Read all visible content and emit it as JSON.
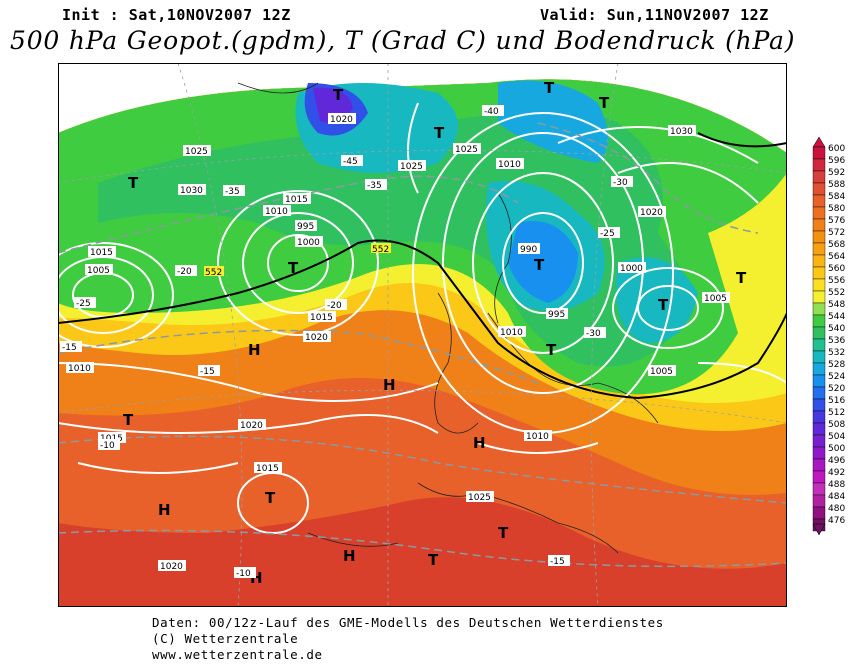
{
  "header": {
    "init": "Init : Sat,10NOV2007 12Z",
    "valid": "Valid: Sun,11NOV2007 12Z",
    "title": "500 hPa Geopot.(gpdm), T (Grad C) und Bodendruck (hPa)"
  },
  "footer": {
    "line1": "Daten: 00/12z-Lauf des GME-Modells des Deutschen Wetterdienstes",
    "line2": "(C) Wetterzentrale",
    "line3": "www.wetterzentrale.de"
  },
  "colorbar": {
    "levels": [
      "600",
      "596",
      "592",
      "588",
      "584",
      "580",
      "576",
      "572",
      "568",
      "564",
      "560",
      "556",
      "552",
      "548",
      "544",
      "540",
      "536",
      "532",
      "528",
      "524",
      "520",
      "516",
      "512",
      "508",
      "504",
      "500",
      "496",
      "492",
      "488",
      "484",
      "480",
      "476"
    ],
    "colors": [
      "#c8143c",
      "#d0283c",
      "#d8403c",
      "#e05032",
      "#e8602a",
      "#ec7020",
      "#f08018",
      "#f49010",
      "#f8a010",
      "#fcb414",
      "#fcc818",
      "#fce020",
      "#f4f030",
      "#90e050",
      "#40cc40",
      "#30c060",
      "#20c090",
      "#18b8c0",
      "#18a8e0",
      "#1890f0",
      "#2070f0",
      "#3050e8",
      "#4838e0",
      "#6028d8",
      "#7820d0",
      "#9018c8",
      "#a818c0",
      "#c018c0",
      "#c030b8",
      "#b020a0",
      "#901080",
      "#701060"
    ]
  },
  "map": {
    "highs_lows": [
      {
        "label": "T"
      },
      {
        "label": "T"
      },
      {
        "label": "T"
      },
      {
        "label": "T"
      },
      {
        "label": "T"
      },
      {
        "label": "T"
      },
      {
        "label": "T"
      },
      {
        "label": "T"
      },
      {
        "label": "T"
      },
      {
        "label": "T"
      },
      {
        "label": "H"
      },
      {
        "label": "H"
      },
      {
        "label": "H"
      },
      {
        "label": "H"
      },
      {
        "label": "H"
      },
      {
        "label": "H"
      },
      {
        "label": "T"
      },
      {
        "label": "T"
      },
      {
        "label": "T"
      },
      {
        "label": "T"
      }
    ],
    "isobar_labels": [
      "1020",
      "1025",
      "1030",
      "1010",
      "1015",
      "1005",
      "995",
      "1000",
      "990",
      "1025",
      "1015",
      "1010",
      "1020",
      "1025",
      "1015",
      "1020",
      "1030",
      "1010",
      "1005",
      "1000",
      "995",
      "1010",
      "1015",
      "1020",
      "1025",
      "1020",
      "1015",
      "1010",
      "1005"
    ],
    "temp_labels": [
      "-40",
      "-45",
      "-35",
      "-30",
      "-25",
      "-20",
      "-15",
      "-10",
      "-15",
      "-20",
      "-25",
      "-30",
      "-35",
      "-15",
      "-10"
    ],
    "geopot_labels": [
      "552",
      "552"
    ]
  }
}
